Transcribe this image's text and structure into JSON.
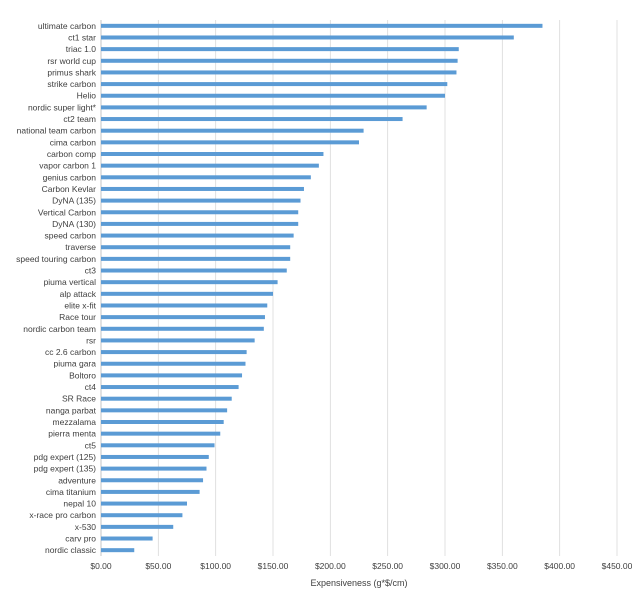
{
  "chart_data": {
    "type": "bar",
    "orientation": "horizontal",
    "title": "",
    "xlabel": "Expensiveness (g*$/cm)",
    "ylabel": "",
    "xlim": [
      0,
      450
    ],
    "x_ticks": [
      0,
      50,
      100,
      150,
      200,
      250,
      300,
      350,
      400,
      450
    ],
    "x_tick_labels": [
      "$0.00",
      "$50.00",
      "$100.00",
      "$150.00",
      "$200.00",
      "$250.00",
      "$300.00",
      "$350.00",
      "$400.00",
      "$450.00"
    ],
    "grid": true,
    "legend": "none",
    "bar_color": "#5b9bd5",
    "grid_color": "#d9d9d9",
    "categories": [
      "ultimate carbon",
      "ct1 star",
      "triac 1.0",
      "rsr world cup",
      "primus shark",
      "strike carbon",
      "Helio",
      "nordic super light*",
      "ct2 team",
      "national team carbon",
      "cima carbon",
      "carbon comp",
      "vapor carbon 1",
      "genius carbon",
      "Carbon Kevlar",
      "DyNA (135)",
      "Vertical Carbon",
      "DyNA (130)",
      "speed carbon",
      "traverse",
      "speed touring carbon",
      "ct3",
      "piuma vertical",
      "alp attack",
      "elite x-fit",
      "Race tour",
      "nordic carbon team",
      "rsr",
      "cc 2.6 carbon",
      "piuma gara",
      "Boltoro",
      "ct4",
      "SR Race",
      "nanga parbat",
      "mezzalama",
      "pierra menta",
      "ct5",
      "pdg expert (125)",
      "pdg expert (135)",
      "adventure",
      "cima titanium",
      "nepal 10",
      "x-race pro carbon",
      "x-530",
      "carv pro",
      "nordic classic"
    ],
    "values": [
      385,
      360,
      312,
      311,
      310,
      302,
      300,
      284,
      263,
      229,
      225,
      194,
      190,
      183,
      177,
      174,
      172,
      172,
      168,
      165,
      165,
      162,
      154,
      150,
      145,
      143,
      142,
      134,
      127,
      126,
      123,
      120,
      114,
      110,
      107,
      104,
      99,
      94,
      92,
      89,
      86,
      75,
      71,
      63,
      45,
      29
    ]
  }
}
